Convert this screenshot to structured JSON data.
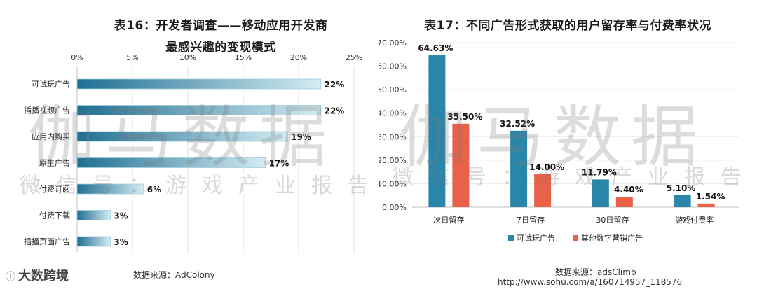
{
  "charts": {
    "left": {
      "title_line1": "表16：开发者调查——移动应用开发商",
      "title_line2": "最感兴趣的变现模式",
      "source": "数据来源：AdColony"
    },
    "right": {
      "title": "表17：不同广告形式获取的用户留存率与付费率状况",
      "source": "数据来源：adsClimb",
      "url": "http://www.sohu.com/a/160714957_118576"
    }
  },
  "watermark": {
    "big": "伽马数据",
    "small": "微信号：游戏产业报告"
  },
  "corner_logo": {
    "glyph": "ⓘ",
    "text": "大数跨境"
  },
  "colors": {
    "teal": "#2a86a8",
    "orange": "#e8624a",
    "axis": "#bfbfbf"
  },
  "chart_data": [
    {
      "type": "bar",
      "orientation": "horizontal",
      "title": "表16：开发者调查——移动应用开发商最感兴趣的变现模式",
      "categories": [
        "可试玩广告",
        "插播视频广告",
        "应用内购买",
        "原生广告",
        "付费订阅",
        "付费下载",
        "插播页面广告"
      ],
      "values": [
        22,
        22,
        19,
        17,
        6,
        3,
        3
      ],
      "value_labels": [
        "22%",
        "22%",
        "19%",
        "17%",
        "6%",
        "3%",
        "3%"
      ],
      "xlim": [
        0,
        25
      ],
      "xticks": [
        "0%",
        "5%",
        "10%",
        "15%",
        "20%",
        "25%"
      ],
      "xtick_values": [
        0,
        5,
        10,
        15,
        20,
        25
      ]
    },
    {
      "type": "bar",
      "orientation": "vertical",
      "title": "表17：不同广告形式获取的用户留存率与付费率状况",
      "categories": [
        "次日留存",
        "7日留存",
        "30日留存",
        "游戏付费率"
      ],
      "series": [
        {
          "name": "可试玩广告",
          "values": [
            64.63,
            32.52,
            11.79,
            5.1
          ],
          "labels": [
            "64.63%",
            "32.52%",
            "11.79%",
            "5.10%"
          ]
        },
        {
          "name": "其他数字营销广告",
          "values": [
            35.5,
            14.0,
            4.4,
            1.54
          ],
          "labels": [
            "35.50%",
            "14.00%",
            "4.40%",
            "1.54%"
          ]
        }
      ],
      "ylim": [
        0,
        70
      ],
      "yticks": [
        "0.00%",
        "10.00%",
        "20.00%",
        "30.00%",
        "40.00%",
        "50.00%",
        "60.00%",
        "70.00%"
      ],
      "ytick_values": [
        0,
        10,
        20,
        30,
        40,
        50,
        60,
        70
      ]
    }
  ]
}
